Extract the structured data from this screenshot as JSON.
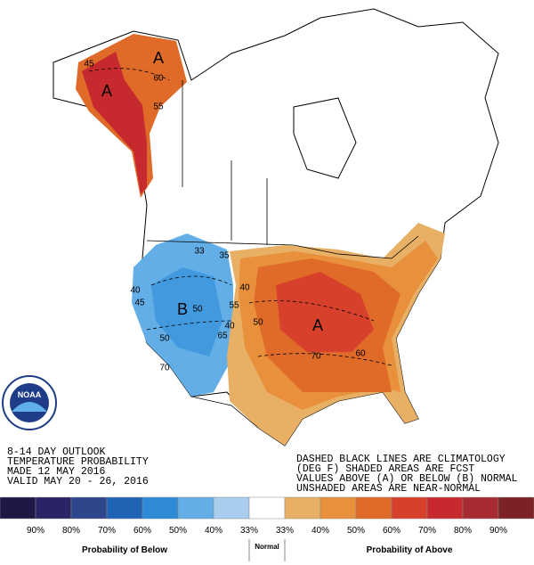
{
  "outlook": {
    "lines": [
      "8-14 DAY OUTLOOK",
      "TEMPERATURE PROBABILITY",
      "MADE  12 MAY 2016",
      "VALID  MAY 20 - 26, 2016"
    ]
  },
  "note": {
    "lines": [
      "DASHED BLACK LINES ARE CLIMATOLOGY",
      "(DEG F) SHADED AREAS ARE FCST",
      "VALUES ABOVE (A) OR BELOW (B) NORMAL",
      "UNSHADED AREAS ARE NEAR-NORMAL"
    ]
  },
  "logo": {
    "text": "NOAA"
  },
  "map_labels": [
    "A",
    "A",
    "45",
    "60",
    "55",
    "33",
    "35",
    "40",
    "45",
    "B",
    "50",
    "55",
    "50",
    "65",
    "40",
    "70",
    "40",
    "50",
    "A",
    "60",
    "70"
  ],
  "legend": {
    "swatches": [
      "#1e1846",
      "#2a2466",
      "#30468c",
      "#1f64b4",
      "#2f8ad8",
      "#63aee6",
      "#a8cdee",
      "#ffffff",
      "#e8b064",
      "#e8903c",
      "#e06a28",
      "#d7402a",
      "#c62a2e",
      "#a82a32",
      "#7c2226"
    ],
    "labels": [
      "90%",
      "80%",
      "70%",
      "60%",
      "50%",
      "40%",
      "33%",
      "33%",
      "40%",
      "50%",
      "60%",
      "70%",
      "80%",
      "90%"
    ],
    "below_title": "Probability of Below",
    "normal_title": "Normal",
    "above_title": "Probability of Above"
  }
}
